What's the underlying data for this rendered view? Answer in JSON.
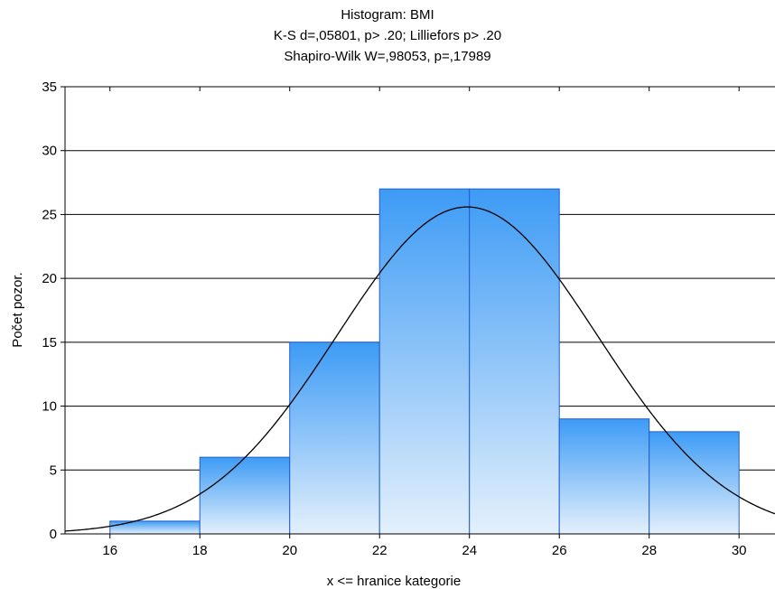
{
  "chart_data": {
    "type": "bar",
    "subtype": "histogram",
    "title_lines": [
      "Histogram: BMI",
      "K-S d=,05801, p> .20; Lilliefors p> .20",
      "Shapiro-Wilk W=,98053, p=,17989"
    ],
    "xlabel": "x <= hranice kategorie",
    "ylabel": "Počet pozor.",
    "xlim": [
      15,
      30.8
    ],
    "ylim": [
      0,
      35
    ],
    "x_ticks": [
      16,
      18,
      20,
      22,
      24,
      26,
      28,
      30
    ],
    "y_ticks": [
      0,
      5,
      10,
      15,
      20,
      25,
      30,
      35
    ],
    "bins": [
      {
        "from": 16,
        "to": 18,
        "count": 1
      },
      {
        "from": 18,
        "to": 20,
        "count": 6
      },
      {
        "from": 20,
        "to": 22,
        "count": 15
      },
      {
        "from": 22,
        "to": 24,
        "count": 27
      },
      {
        "from": 24,
        "to": 26,
        "count": 27
      },
      {
        "from": 26,
        "to": 28,
        "count": 9
      },
      {
        "from": 28,
        "to": 30,
        "count": 8
      }
    ],
    "normal_curve": {
      "mean": 23.95,
      "sd": 2.9,
      "n": 93,
      "bin_width": 2
    },
    "grid": "horizontal",
    "colors": {
      "bar_top": "#3d9bf5",
      "bar_bottom": "#e4f0fc",
      "bar_edge": "#1f5fcf",
      "curve": "#000000"
    }
  }
}
